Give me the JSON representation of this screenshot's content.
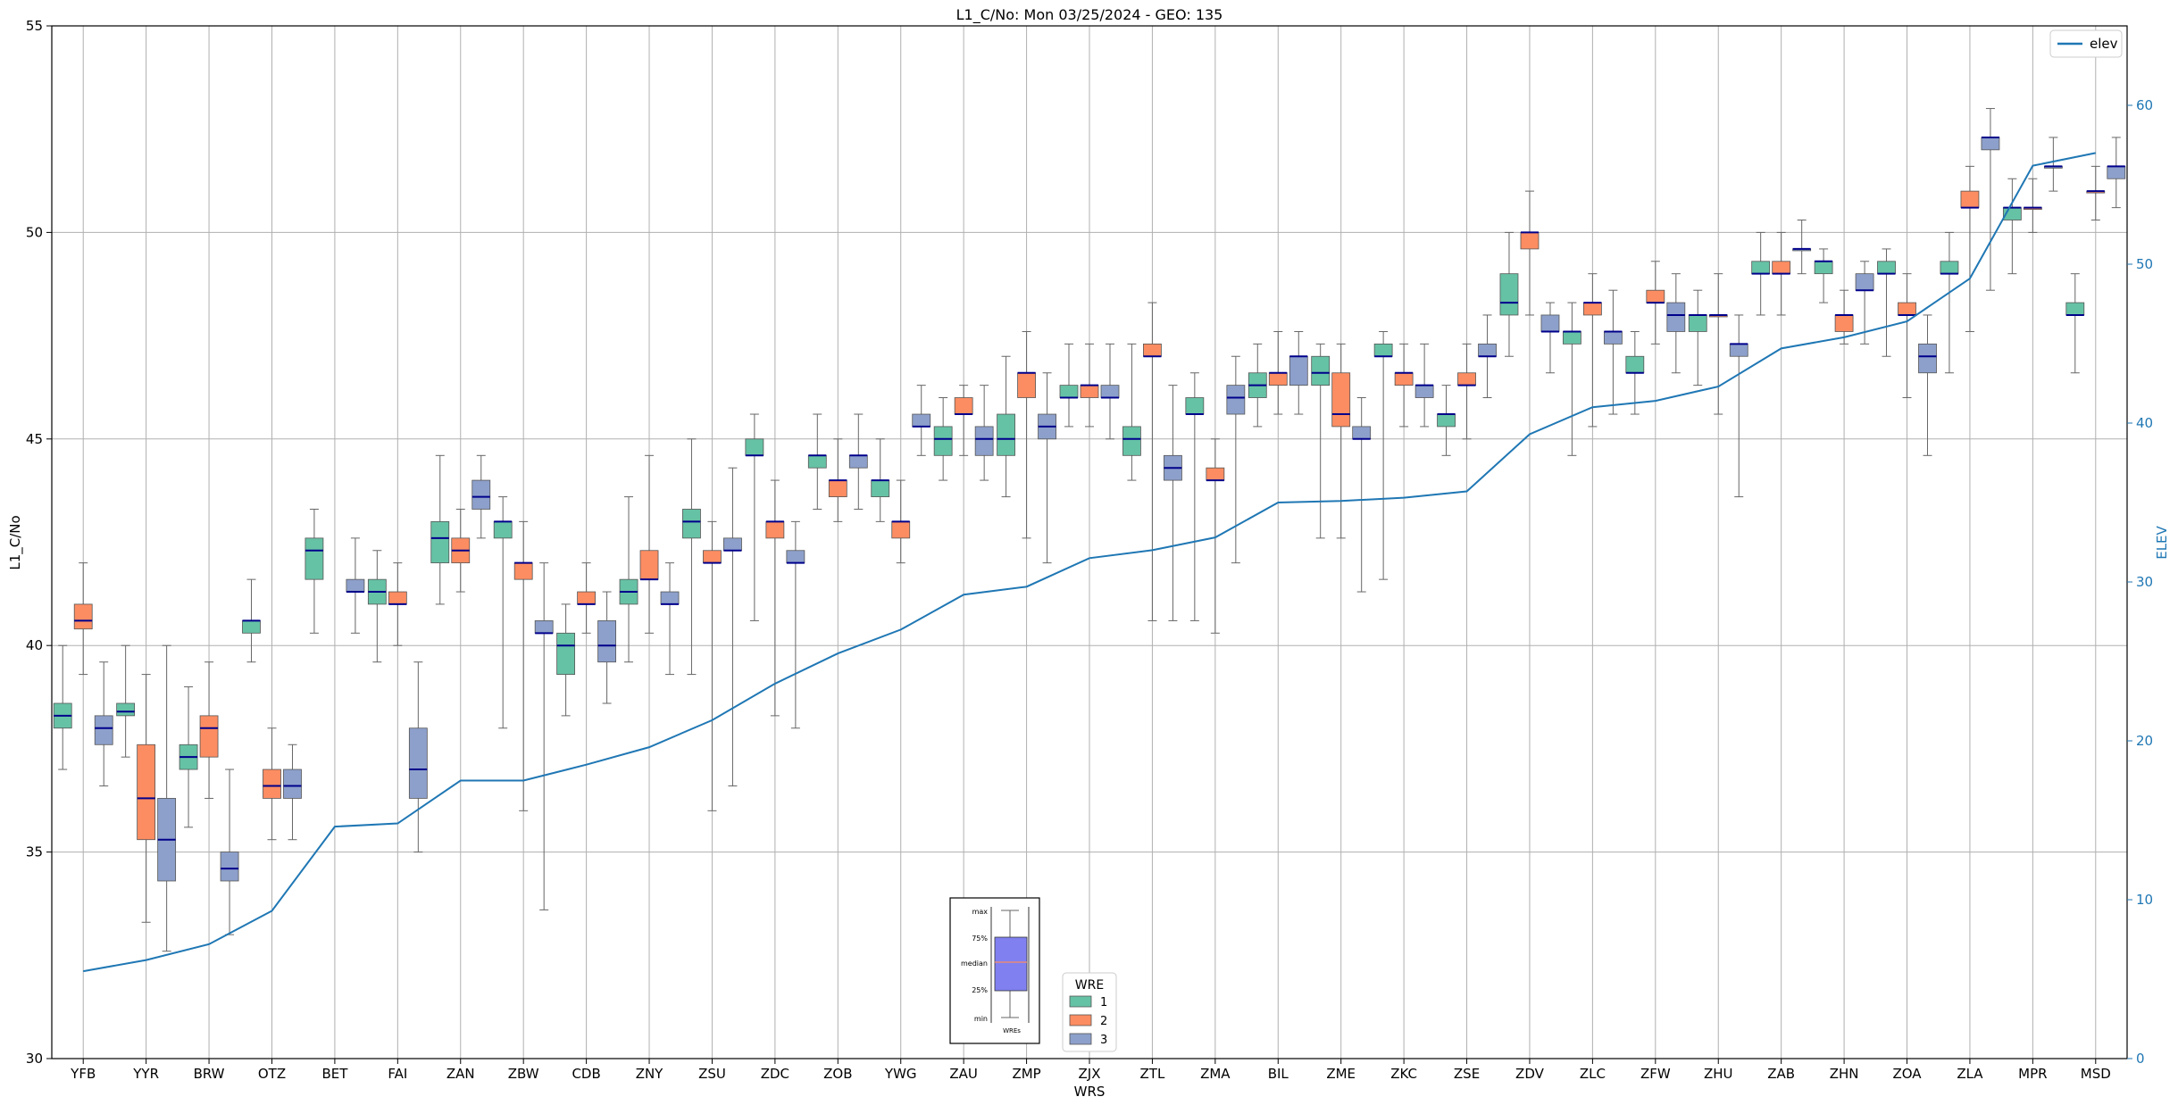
{
  "chart_data": {
    "type": "box",
    "title": "L1_C/No: Mon 03/25/2024 - GEO: 135",
    "xlabel": "WRS",
    "ylabel": "L1_C/No",
    "y2label": "ELEV",
    "ylim": [
      30,
      55
    ],
    "y2lim": [
      0,
      65
    ],
    "yticks": [
      30,
      35,
      40,
      45,
      50,
      55
    ],
    "y2ticks": [
      0,
      10,
      20,
      30,
      40,
      50,
      60
    ],
    "grid": true,
    "categories": [
      "YFB",
      "YYR",
      "BRW",
      "OTZ",
      "BET",
      "FAI",
      "ZAN",
      "ZBW",
      "CDB",
      "ZNY",
      "ZSU",
      "ZDC",
      "ZOB",
      "YWG",
      "ZAU",
      "ZMP",
      "ZJX",
      "ZTL",
      "ZMA",
      "BIL",
      "ZME",
      "ZKC",
      "ZSE",
      "ZDV",
      "ZLC",
      "ZFW",
      "ZHU",
      "ZAB",
      "ZHN",
      "ZOA",
      "ZLA",
      "MPR",
      "MSD"
    ],
    "legend_boxes": {
      "title": "WRE",
      "entries": [
        "1",
        "2",
        "3"
      ],
      "colors": [
        "#66c2a5",
        "#fc8d62",
        "#8da0cb"
      ]
    },
    "legend_line": {
      "name": "elev",
      "color": "#1f77b4",
      "placement": "top-right"
    },
    "inset_legend": {
      "labels": [
        "max",
        "75%",
        "median",
        "25%",
        "min"
      ],
      "xlabel": "WREs"
    },
    "boxes": [
      {
        "cat": "YFB",
        "wre": 1,
        "min": 37.0,
        "q1": 38.0,
        "med": 38.3,
        "q3": 38.6,
        "max": 40.0
      },
      {
        "cat": "YFB",
        "wre": 2,
        "min": 39.3,
        "q1": 40.4,
        "med": 40.6,
        "q3": 41.0,
        "max": 42.0
      },
      {
        "cat": "YFB",
        "wre": 3,
        "min": 36.6,
        "q1": 37.6,
        "med": 38.0,
        "q3": 38.3,
        "max": 39.6
      },
      {
        "cat": "YYR",
        "wre": 1,
        "min": 37.3,
        "q1": 38.3,
        "med": 38.4,
        "q3": 38.6,
        "max": 40.0
      },
      {
        "cat": "YYR",
        "wre": 2,
        "min": 33.3,
        "q1": 35.3,
        "med": 36.3,
        "q3": 37.6,
        "max": 39.3
      },
      {
        "cat": "YYR",
        "wre": 3,
        "min": 32.6,
        "q1": 34.3,
        "med": 35.3,
        "q3": 36.3,
        "max": 40.0
      },
      {
        "cat": "BRW",
        "wre": 1,
        "min": 35.6,
        "q1": 37.0,
        "med": 37.3,
        "q3": 37.6,
        "max": 39.0
      },
      {
        "cat": "BRW",
        "wre": 2,
        "min": 36.3,
        "q1": 37.3,
        "med": 38.0,
        "q3": 38.3,
        "max": 39.6
      },
      {
        "cat": "BRW",
        "wre": 3,
        "min": 33.0,
        "q1": 34.3,
        "med": 34.6,
        "q3": 35.0,
        "max": 37.0
      },
      {
        "cat": "OTZ",
        "wre": 1,
        "min": 39.6,
        "q1": 40.3,
        "med": 40.6,
        "q3": 40.6,
        "max": 41.6
      },
      {
        "cat": "OTZ",
        "wre": 2,
        "min": 35.3,
        "q1": 36.3,
        "med": 36.6,
        "q3": 37.0,
        "max": 38.0
      },
      {
        "cat": "OTZ",
        "wre": 3,
        "min": 35.3,
        "q1": 36.3,
        "med": 36.6,
        "q3": 37.0,
        "max": 37.6
      },
      {
        "cat": "BET",
        "wre": 1,
        "min": 40.3,
        "q1": 41.6,
        "med": 42.3,
        "q3": 42.6,
        "max": 43.3
      },
      {
        "cat": "BET",
        "wre": 3,
        "min": 40.3,
        "q1": 41.3,
        "med": 41.3,
        "q3": 41.6,
        "max": 42.6
      },
      {
        "cat": "FAI",
        "wre": 1,
        "min": 39.6,
        "q1": 41.0,
        "med": 41.3,
        "q3": 41.6,
        "max": 42.3
      },
      {
        "cat": "FAI",
        "wre": 2,
        "min": 40.0,
        "q1": 41.0,
        "med": 41.0,
        "q3": 41.3,
        "max": 42.0
      },
      {
        "cat": "FAI",
        "wre": 3,
        "min": 35.0,
        "q1": 36.3,
        "med": 37.0,
        "q3": 38.0,
        "max": 39.6
      },
      {
        "cat": "ZAN",
        "wre": 1,
        "min": 41.0,
        "q1": 42.0,
        "med": 42.6,
        "q3": 43.0,
        "max": 44.6
      },
      {
        "cat": "ZAN",
        "wre": 2,
        "min": 41.3,
        "q1": 42.0,
        "med": 42.3,
        "q3": 42.6,
        "max": 43.3
      },
      {
        "cat": "ZAN",
        "wre": 3,
        "min": 42.6,
        "q1": 43.3,
        "med": 43.6,
        "q3": 44.0,
        "max": 44.6
      },
      {
        "cat": "ZBW",
        "wre": 1,
        "min": 38.0,
        "q1": 42.6,
        "med": 43.0,
        "q3": 43.0,
        "max": 43.6
      },
      {
        "cat": "ZBW",
        "wre": 2,
        "min": 36.0,
        "q1": 41.6,
        "med": 42.0,
        "q3": 42.0,
        "max": 43.0
      },
      {
        "cat": "ZBW",
        "wre": 3,
        "min": 33.6,
        "q1": 40.3,
        "med": 40.3,
        "q3": 40.6,
        "max": 42.0
      },
      {
        "cat": "CDB",
        "wre": 1,
        "min": 38.3,
        "q1": 39.3,
        "med": 40.0,
        "q3": 40.3,
        "max": 41.0
      },
      {
        "cat": "CDB",
        "wre": 2,
        "min": 40.3,
        "q1": 41.0,
        "med": 41.0,
        "q3": 41.3,
        "max": 42.0
      },
      {
        "cat": "CDB",
        "wre": 3,
        "min": 38.6,
        "q1": 39.6,
        "med": 40.0,
        "q3": 40.6,
        "max": 41.3
      },
      {
        "cat": "ZNY",
        "wre": 1,
        "min": 39.6,
        "q1": 41.0,
        "med": 41.3,
        "q3": 41.6,
        "max": 43.6
      },
      {
        "cat": "ZNY",
        "wre": 2,
        "min": 40.3,
        "q1": 41.6,
        "med": 41.6,
        "q3": 42.3,
        "max": 44.6
      },
      {
        "cat": "ZNY",
        "wre": 3,
        "min": 39.3,
        "q1": 41.0,
        "med": 41.0,
        "q3": 41.3,
        "max": 42.0
      },
      {
        "cat": "ZSU",
        "wre": 1,
        "min": 39.3,
        "q1": 42.6,
        "med": 43.0,
        "q3": 43.3,
        "max": 45.0
      },
      {
        "cat": "ZSU",
        "wre": 2,
        "min": 36.0,
        "q1": 42.0,
        "med": 42.0,
        "q3": 42.3,
        "max": 43.0
      },
      {
        "cat": "ZSU",
        "wre": 3,
        "min": 36.6,
        "q1": 42.3,
        "med": 42.3,
        "q3": 42.6,
        "max": 44.3
      },
      {
        "cat": "ZDC",
        "wre": 1,
        "min": 40.6,
        "q1": 44.6,
        "med": 44.6,
        "q3": 45.0,
        "max": 45.6
      },
      {
        "cat": "ZDC",
        "wre": 2,
        "min": 38.3,
        "q1": 42.6,
        "med": 43.0,
        "q3": 43.0,
        "max": 44.0
      },
      {
        "cat": "ZDC",
        "wre": 3,
        "min": 38.0,
        "q1": 42.0,
        "med": 42.0,
        "q3": 42.3,
        "max": 43.0
      },
      {
        "cat": "ZOB",
        "wre": 1,
        "min": 43.3,
        "q1": 44.3,
        "med": 44.6,
        "q3": 44.6,
        "max": 45.6
      },
      {
        "cat": "ZOB",
        "wre": 2,
        "min": 43.0,
        "q1": 43.6,
        "med": 44.0,
        "q3": 44.0,
        "max": 45.0
      },
      {
        "cat": "ZOB",
        "wre": 3,
        "min": 43.3,
        "q1": 44.3,
        "med": 44.6,
        "q3": 44.6,
        "max": 45.6
      },
      {
        "cat": "YWG",
        "wre": 1,
        "min": 43.0,
        "q1": 43.6,
        "med": 44.0,
        "q3": 44.0,
        "max": 45.0
      },
      {
        "cat": "YWG",
        "wre": 2,
        "min": 42.0,
        "q1": 42.6,
        "med": 43.0,
        "q3": 43.0,
        "max": 44.0
      },
      {
        "cat": "YWG",
        "wre": 3,
        "min": 44.6,
        "q1": 45.3,
        "med": 45.3,
        "q3": 45.6,
        "max": 46.3
      },
      {
        "cat": "ZAU",
        "wre": 1,
        "min": 44.0,
        "q1": 44.6,
        "med": 45.0,
        "q3": 45.3,
        "max": 46.0
      },
      {
        "cat": "ZAU",
        "wre": 2,
        "min": 44.6,
        "q1": 45.6,
        "med": 45.6,
        "q3": 46.0,
        "max": 46.3
      },
      {
        "cat": "ZAU",
        "wre": 3,
        "min": 44.0,
        "q1": 44.6,
        "med": 45.0,
        "q3": 45.3,
        "max": 46.3
      },
      {
        "cat": "ZMP",
        "wre": 1,
        "min": 43.6,
        "q1": 44.6,
        "med": 45.0,
        "q3": 45.6,
        "max": 47.0
      },
      {
        "cat": "ZMP",
        "wre": 2,
        "min": 42.6,
        "q1": 46.0,
        "med": 46.6,
        "q3": 46.6,
        "max": 47.6
      },
      {
        "cat": "ZMP",
        "wre": 3,
        "min": 42.0,
        "q1": 45.0,
        "med": 45.3,
        "q3": 45.6,
        "max": 46.6
      },
      {
        "cat": "ZJX",
        "wre": 1,
        "min": 45.3,
        "q1": 46.0,
        "med": 46.0,
        "q3": 46.3,
        "max": 47.3
      },
      {
        "cat": "ZJX",
        "wre": 2,
        "min": 45.3,
        "q1": 46.0,
        "med": 46.3,
        "q3": 46.3,
        "max": 47.3
      },
      {
        "cat": "ZJX",
        "wre": 3,
        "min": 45.0,
        "q1": 46.0,
        "med": 46.0,
        "q3": 46.3,
        "max": 47.3
      },
      {
        "cat": "ZTL",
        "wre": 1,
        "min": 44.0,
        "q1": 44.6,
        "med": 45.0,
        "q3": 45.3,
        "max": 47.3
      },
      {
        "cat": "ZTL",
        "wre": 2,
        "min": 40.6,
        "q1": 47.0,
        "med": 47.0,
        "q3": 47.3,
        "max": 48.3
      },
      {
        "cat": "ZTL",
        "wre": 3,
        "min": 40.6,
        "q1": 44.0,
        "med": 44.3,
        "q3": 44.6,
        "max": 46.3
      },
      {
        "cat": "ZMA",
        "wre": 1,
        "min": 40.6,
        "q1": 45.6,
        "med": 45.6,
        "q3": 46.0,
        "max": 46.6
      },
      {
        "cat": "ZMA",
        "wre": 2,
        "min": 40.3,
        "q1": 44.0,
        "med": 44.0,
        "q3": 44.3,
        "max": 45.0
      },
      {
        "cat": "ZMA",
        "wre": 3,
        "min": 42.0,
        "q1": 45.6,
        "med": 46.0,
        "q3": 46.3,
        "max": 47.0
      },
      {
        "cat": "BIL",
        "wre": 1,
        "min": 45.3,
        "q1": 46.0,
        "med": 46.3,
        "q3": 46.6,
        "max": 47.3
      },
      {
        "cat": "BIL",
        "wre": 2,
        "min": 45.6,
        "q1": 46.3,
        "med": 46.6,
        "q3": 46.6,
        "max": 47.6
      },
      {
        "cat": "BIL",
        "wre": 3,
        "min": 45.6,
        "q1": 46.3,
        "med": 47.0,
        "q3": 47.0,
        "max": 47.6
      },
      {
        "cat": "ZME",
        "wre": 1,
        "min": 42.6,
        "q1": 46.3,
        "med": 46.6,
        "q3": 47.0,
        "max": 47.3
      },
      {
        "cat": "ZME",
        "wre": 2,
        "min": 42.6,
        "q1": 45.3,
        "med": 45.6,
        "q3": 46.6,
        "max": 47.3
      },
      {
        "cat": "ZME",
        "wre": 3,
        "min": 41.3,
        "q1": 45.0,
        "med": 45.0,
        "q3": 45.3,
        "max": 46.0
      },
      {
        "cat": "ZKC",
        "wre": 1,
        "min": 41.6,
        "q1": 47.0,
        "med": 47.0,
        "q3": 47.3,
        "max": 47.6
      },
      {
        "cat": "ZKC",
        "wre": 2,
        "min": 45.3,
        "q1": 46.3,
        "med": 46.6,
        "q3": 46.6,
        "max": 47.3
      },
      {
        "cat": "ZKC",
        "wre": 3,
        "min": 45.3,
        "q1": 46.0,
        "med": 46.3,
        "q3": 46.3,
        "max": 47.3
      },
      {
        "cat": "ZSE",
        "wre": 1,
        "min": 44.6,
        "q1": 45.3,
        "med": 45.6,
        "q3": 45.6,
        "max": 46.3
      },
      {
        "cat": "ZSE",
        "wre": 2,
        "min": 45.0,
        "q1": 46.3,
        "med": 46.3,
        "q3": 46.6,
        "max": 47.3
      },
      {
        "cat": "ZSE",
        "wre": 3,
        "min": 46.0,
        "q1": 47.0,
        "med": 47.0,
        "q3": 47.3,
        "max": 48.0
      },
      {
        "cat": "ZDV",
        "wre": 1,
        "min": 47.0,
        "q1": 48.0,
        "med": 48.3,
        "q3": 49.0,
        "max": 50.0
      },
      {
        "cat": "ZDV",
        "wre": 2,
        "min": 48.0,
        "q1": 49.6,
        "med": 50.0,
        "q3": 50.0,
        "max": 51.0
      },
      {
        "cat": "ZDV",
        "wre": 3,
        "min": 46.6,
        "q1": 47.6,
        "med": 47.6,
        "q3": 48.0,
        "max": 48.3
      },
      {
        "cat": "ZLC",
        "wre": 1,
        "min": 44.6,
        "q1": 47.3,
        "med": 47.6,
        "q3": 47.6,
        "max": 48.3
      },
      {
        "cat": "ZLC",
        "wre": 2,
        "min": 45.3,
        "q1": 48.0,
        "med": 48.3,
        "q3": 48.3,
        "max": 49.0
      },
      {
        "cat": "ZLC",
        "wre": 3,
        "min": 45.6,
        "q1": 47.3,
        "med": 47.6,
        "q3": 47.6,
        "max": 48.6
      },
      {
        "cat": "ZFW",
        "wre": 1,
        "min": 45.6,
        "q1": 46.6,
        "med": 46.6,
        "q3": 47.0,
        "max": 47.6
      },
      {
        "cat": "ZFW",
        "wre": 2,
        "min": 47.3,
        "q1": 48.3,
        "med": 48.3,
        "q3": 48.6,
        "max": 49.3
      },
      {
        "cat": "ZFW",
        "wre": 3,
        "min": 46.6,
        "q1": 47.6,
        "med": 48.0,
        "q3": 48.3,
        "max": 49.0
      },
      {
        "cat": "ZHU",
        "wre": 1,
        "min": 46.3,
        "q1": 47.6,
        "med": 48.0,
        "q3": 48.0,
        "max": 48.6
      },
      {
        "cat": "ZHU",
        "wre": 2,
        "min": 45.6,
        "q1": 48.0,
        "med": 48.0,
        "q3": 48.0,
        "max": 49.0
      },
      {
        "cat": "ZHU",
        "wre": 3,
        "min": 43.6,
        "q1": 47.0,
        "med": 47.3,
        "q3": 47.3,
        "max": 48.0
      },
      {
        "cat": "ZAB",
        "wre": 1,
        "min": 48.0,
        "q1": 49.0,
        "med": 49.0,
        "q3": 49.3,
        "max": 50.0
      },
      {
        "cat": "ZAB",
        "wre": 2,
        "min": 48.0,
        "q1": 49.0,
        "med": 49.0,
        "q3": 49.3,
        "max": 50.0
      },
      {
        "cat": "ZAB",
        "wre": 3,
        "min": 49.0,
        "q1": 49.6,
        "med": 49.6,
        "q3": 49.6,
        "max": 50.3
      },
      {
        "cat": "ZHN",
        "wre": 1,
        "min": 48.3,
        "q1": 49.0,
        "med": 49.3,
        "q3": 49.3,
        "max": 49.6
      },
      {
        "cat": "ZHN",
        "wre": 2,
        "min": 47.3,
        "q1": 47.6,
        "med": 48.0,
        "q3": 48.0,
        "max": 48.6
      },
      {
        "cat": "ZHN",
        "wre": 3,
        "min": 47.3,
        "q1": 48.6,
        "med": 48.6,
        "q3": 49.0,
        "max": 49.3
      },
      {
        "cat": "ZOA",
        "wre": 1,
        "min": 47.0,
        "q1": 49.0,
        "med": 49.0,
        "q3": 49.3,
        "max": 49.6
      },
      {
        "cat": "ZOA",
        "wre": 2,
        "min": 46.0,
        "q1": 48.0,
        "med": 48.0,
        "q3": 48.3,
        "max": 49.0
      },
      {
        "cat": "ZOA",
        "wre": 3,
        "min": 44.6,
        "q1": 46.6,
        "med": 47.0,
        "q3": 47.3,
        "max": 48.0
      },
      {
        "cat": "ZLA",
        "wre": 1,
        "min": 46.6,
        "q1": 49.0,
        "med": 49.0,
        "q3": 49.3,
        "max": 50.0
      },
      {
        "cat": "ZLA",
        "wre": 2,
        "min": 47.6,
        "q1": 50.6,
        "med": 50.6,
        "q3": 51.0,
        "max": 51.6
      },
      {
        "cat": "ZLA",
        "wre": 3,
        "min": 48.6,
        "q1": 52.0,
        "med": 52.3,
        "q3": 52.3,
        "max": 53.0
      },
      {
        "cat": "MPR",
        "wre": 1,
        "min": 49.0,
        "q1": 50.3,
        "med": 50.6,
        "q3": 50.6,
        "max": 51.3
      },
      {
        "cat": "MPR",
        "wre": 2,
        "min": 50.0,
        "q1": 50.6,
        "med": 50.6,
        "q3": 50.6,
        "max": 51.3
      },
      {
        "cat": "MPR",
        "wre": 3,
        "min": 51.0,
        "q1": 51.6,
        "med": 51.6,
        "q3": 51.6,
        "max": 52.3
      },
      {
        "cat": "MSD",
        "wre": 1,
        "min": 46.6,
        "q1": 48.0,
        "med": 48.0,
        "q3": 48.3,
        "max": 49.0
      },
      {
        "cat": "MSD",
        "wre": 2,
        "min": 50.3,
        "q1": 51.0,
        "med": 51.0,
        "q3": 51.0,
        "max": 51.6
      },
      {
        "cat": "MSD",
        "wre": 3,
        "min": 50.6,
        "q1": 51.3,
        "med": 51.6,
        "q3": 51.6,
        "max": 52.3
      }
    ],
    "elev": [
      5.5,
      6.2,
      7.2,
      9.3,
      14.6,
      14.8,
      17.5,
      17.5,
      18.5,
      19.6,
      21.3,
      23.6,
      25.5,
      27.0,
      29.2,
      29.7,
      31.5,
      32.0,
      32.8,
      35.0,
      35.1,
      35.3,
      35.7,
      39.3,
      41.0,
      41.4,
      42.3,
      44.7,
      45.4,
      46.4,
      49.1,
      56.2,
      57.0
    ]
  }
}
